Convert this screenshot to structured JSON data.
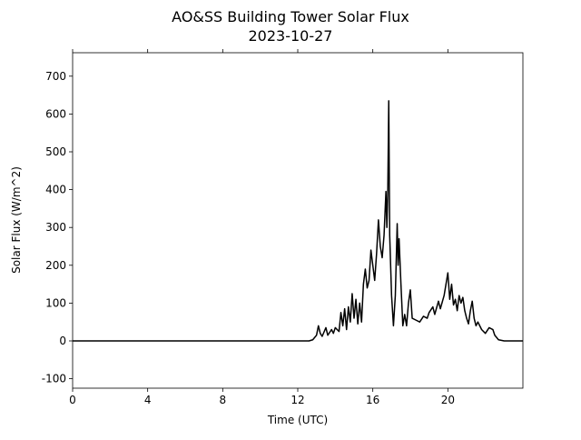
{
  "chart_data": {
    "type": "line",
    "title": "AO&SS Building Tower Solar Flux",
    "subtitle": "2023-10-27",
    "xlabel": "Time (UTC)",
    "ylabel": "Solar Flux (W/m^2)",
    "color": "#000000",
    "x": [
      0,
      12.6,
      12.8,
      13.0,
      13.1,
      13.2,
      13.3,
      13.5,
      13.6,
      13.8,
      13.9,
      14.0,
      14.2,
      14.3,
      14.4,
      14.5,
      14.6,
      14.7,
      14.8,
      14.9,
      15.0,
      15.1,
      15.2,
      15.3,
      15.4,
      15.5,
      15.6,
      15.7,
      15.8,
      15.9,
      16.0,
      16.1,
      16.2,
      16.3,
      16.4,
      16.5,
      16.6,
      16.7,
      16.75,
      16.8,
      16.85,
      16.9,
      17.0,
      17.1,
      17.2,
      17.3,
      17.35,
      17.4,
      17.5,
      17.6,
      17.7,
      17.8,
      17.9,
      18.0,
      18.1,
      18.3,
      18.5,
      18.7,
      18.9,
      19.0,
      19.2,
      19.3,
      19.5,
      19.6,
      19.8,
      20.0,
      20.1,
      20.2,
      20.3,
      20.4,
      20.5,
      20.6,
      20.7,
      20.8,
      20.9,
      21.0,
      21.1,
      21.2,
      21.3,
      21.4,
      21.5,
      21.6,
      21.8,
      22.0,
      22.2,
      22.4,
      22.5,
      22.7,
      23.0,
      24
    ],
    "values": [
      0,
      0,
      3,
      15,
      40,
      20,
      12,
      35,
      15,
      30,
      20,
      35,
      25,
      75,
      40,
      85,
      30,
      90,
      50,
      125,
      60,
      110,
      45,
      100,
      50,
      150,
      190,
      140,
      160,
      240,
      200,
      160,
      230,
      320,
      250,
      220,
      280,
      395,
      300,
      400,
      635,
      280,
      120,
      40,
      120,
      310,
      200,
      270,
      150,
      40,
      70,
      40,
      100,
      135,
      60,
      55,
      50,
      65,
      60,
      75,
      90,
      70,
      105,
      85,
      120,
      180,
      110,
      150,
      95,
      110,
      80,
      120,
      100,
      115,
      80,
      60,
      45,
      80,
      105,
      60,
      40,
      50,
      30,
      20,
      35,
      30,
      15,
      3,
      0,
      0
    ],
    "xlim": [
      0,
      24
    ],
    "ylim": [
      -125,
      762
    ],
    "xticks": [
      0,
      4,
      8,
      12,
      16,
      20
    ],
    "yticks": [
      -100,
      0,
      100,
      200,
      300,
      400,
      500,
      600,
      700
    ]
  }
}
